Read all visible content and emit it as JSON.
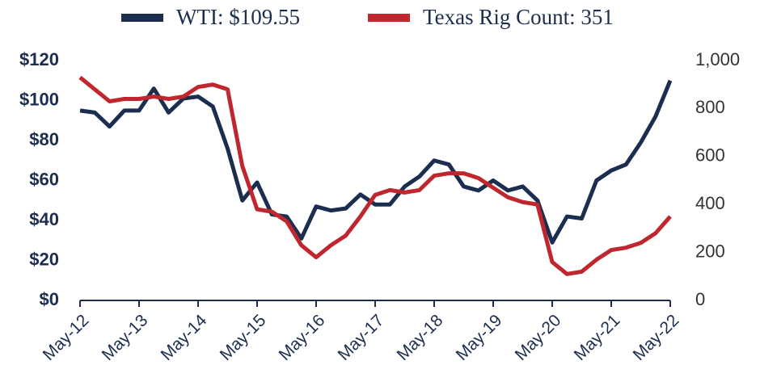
{
  "chart_data": {
    "type": "line",
    "categories": [
      "May-12",
      null,
      null,
      null,
      "May-13",
      null,
      null,
      null,
      "May-14",
      null,
      null,
      null,
      "May-15",
      null,
      null,
      null,
      "May-16",
      null,
      null,
      null,
      "May-17",
      null,
      null,
      null,
      "May-18",
      null,
      null,
      null,
      "May-19",
      null,
      null,
      null,
      "May-20",
      null,
      null,
      null,
      "May-21",
      null,
      null,
      null,
      "May-22"
    ],
    "series": [
      {
        "name": "WTI: $109.55",
        "color": "#1c2e4f",
        "values": [
          95,
          94,
          87,
          95,
          95,
          106,
          94,
          101,
          102,
          97,
          76,
          50,
          59,
          43,
          42,
          31,
          47,
          45,
          46,
          53,
          48,
          48,
          57,
          62,
          70,
          68,
          57,
          55,
          60,
          55,
          57,
          50,
          29,
          42,
          41,
          60,
          65,
          68,
          79,
          92,
          110
        ]
      },
      {
        "name": "Texas Rig Count: 351",
        "color": "#c0262d",
        "axis": "y2",
        "values": [
          930,
          880,
          830,
          840,
          840,
          850,
          840,
          850,
          890,
          900,
          880,
          560,
          380,
          370,
          330,
          230,
          180,
          230,
          270,
          350,
          440,
          460,
          450,
          460,
          520,
          530,
          530,
          510,
          470,
          430,
          410,
          400,
          160,
          110,
          120,
          170,
          210,
          220,
          240,
          280,
          350
        ]
      }
    ],
    "ylim": [
      0,
      120
    ],
    "yticks": [
      {
        "value": 0,
        "label": "$0"
      },
      {
        "value": 20,
        "label": "$20"
      },
      {
        "value": 40,
        "label": "$40"
      },
      {
        "value": 60,
        "label": "$60"
      },
      {
        "value": 80,
        "label": "$80"
      },
      {
        "value": 100,
        "label": "$100"
      },
      {
        "value": 120,
        "label": "$120"
      }
    ],
    "y2lim": [
      0,
      1000
    ],
    "y2ticks": [
      0,
      200,
      400,
      600,
      800,
      {
        "value": 1000,
        "label": "1,000"
      }
    ],
    "legend": "top"
  }
}
